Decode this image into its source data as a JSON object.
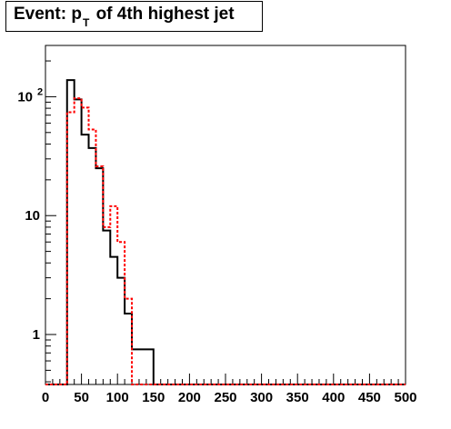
{
  "title": {
    "prefix": "Event: p",
    "subscript": "T",
    "suffix": " of 4th highest jet"
  },
  "chart_data": {
    "type": "histogram",
    "title": "Event: p_T of 4th highest jet",
    "xlabel": "",
    "ylabel": "",
    "xlim": [
      0,
      500
    ],
    "ylim": [
      0.38,
      270
    ],
    "yscale": "log",
    "bin_width": 10,
    "x_ticks": [
      "0",
      "50",
      "100",
      "150",
      "200",
      "250",
      "300",
      "350",
      "400",
      "450",
      "500"
    ],
    "y_ticks": [
      {
        "value": 1,
        "label": "1"
      },
      {
        "value": 10,
        "label": "10"
      },
      {
        "value": 100,
        "label": "10",
        "exponent": "2"
      }
    ],
    "series": [
      {
        "color": "#000000",
        "style": "solid",
        "bin_edges": [
          30,
          40,
          50,
          60,
          70,
          80,
          90,
          100,
          110,
          120,
          150
        ],
        "values": [
          138,
          95,
          48,
          37,
          25,
          7.5,
          4.5,
          3.0,
          1.5,
          0.75
        ]
      },
      {
        "color": "#ff0000",
        "style": "dashed",
        "bin_edges": [
          30,
          40,
          50,
          60,
          70,
          80,
          90,
          100,
          110,
          120
        ],
        "values": [
          74,
          97,
          81,
          53,
          26,
          8.0,
          12.0,
          6.0,
          2.0
        ]
      }
    ]
  }
}
